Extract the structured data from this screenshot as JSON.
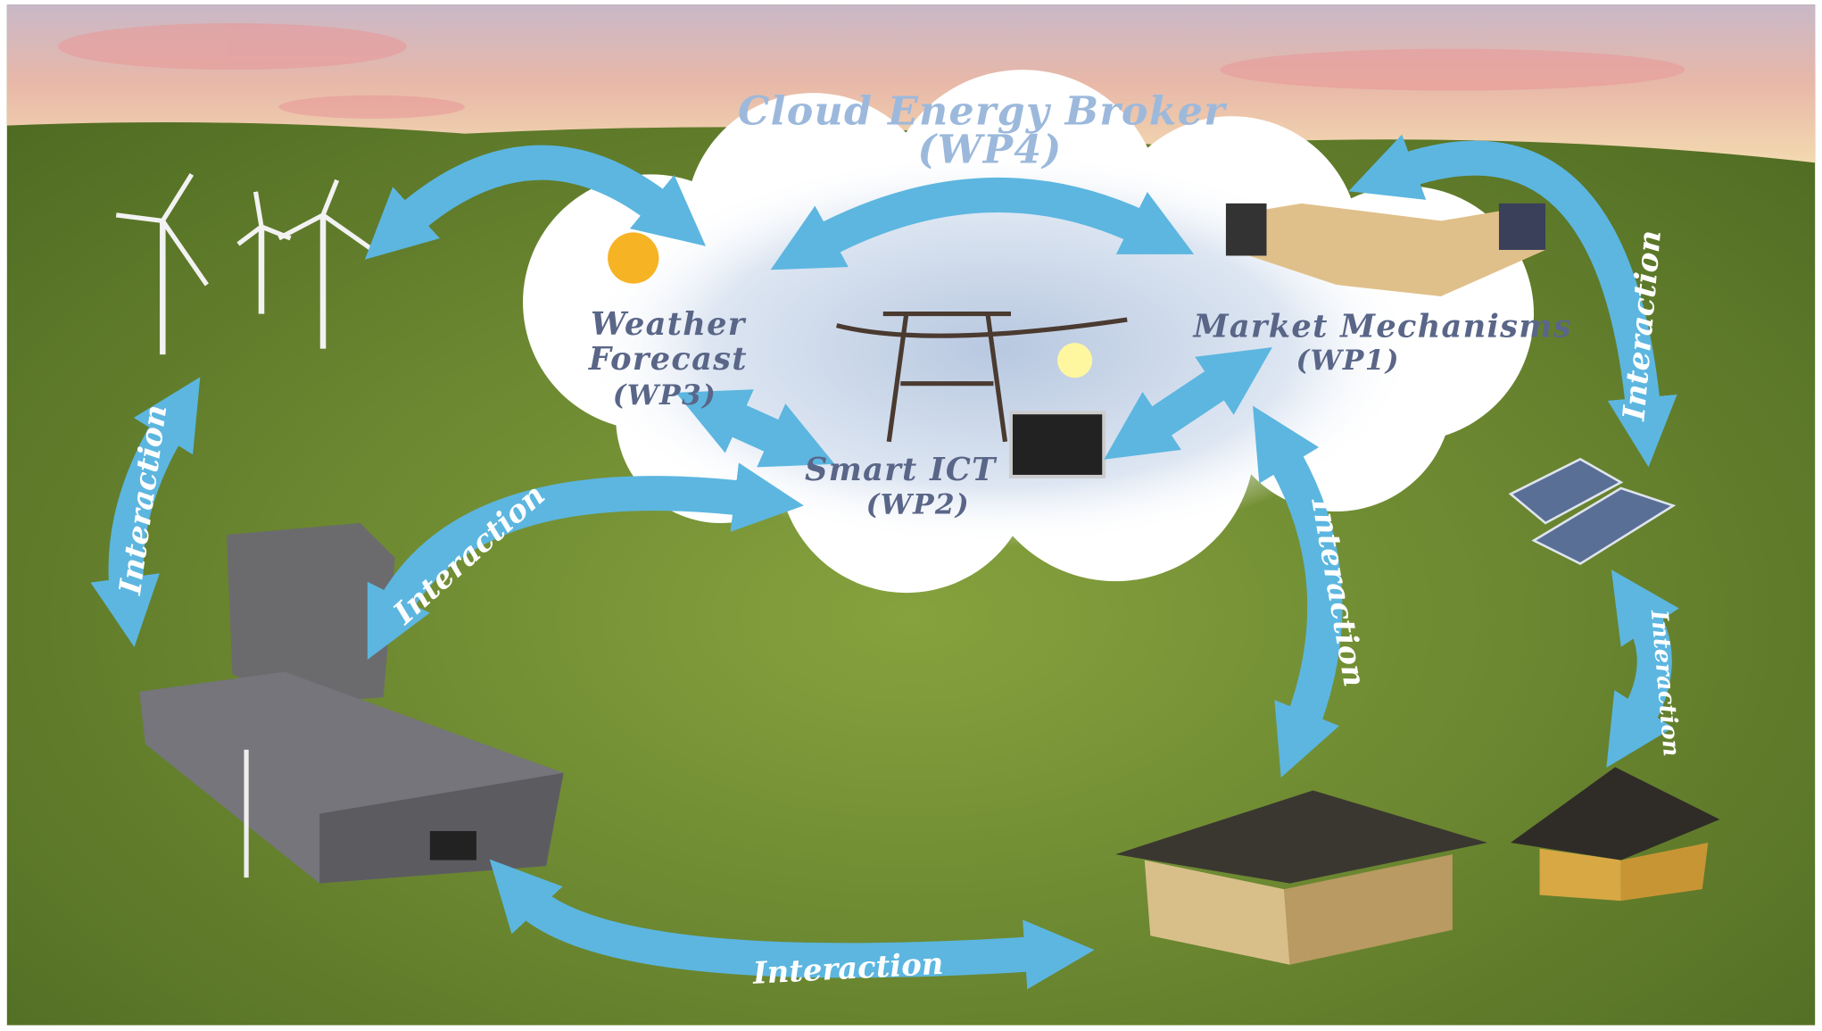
{
  "title": "Cloud Energy Broker",
  "subtitle": "(WP4)",
  "nodes": [
    {
      "lines": [
        "Weather",
        "Forecast",
        "(WP3)"
      ]
    },
    {
      "lines": [
        "Market Mechanisms",
        "(WP1)"
      ]
    },
    {
      "lines": [
        "Smart ICT",
        "(WP2)"
      ]
    }
  ],
  "edges": [
    {
      "label": "Interaction"
    },
    {
      "label": "Interaction"
    },
    {
      "label": "Interaction"
    },
    {
      "label": "Interaction"
    },
    {
      "label": "Interaction"
    },
    {
      "label": "Interaction"
    }
  ]
}
